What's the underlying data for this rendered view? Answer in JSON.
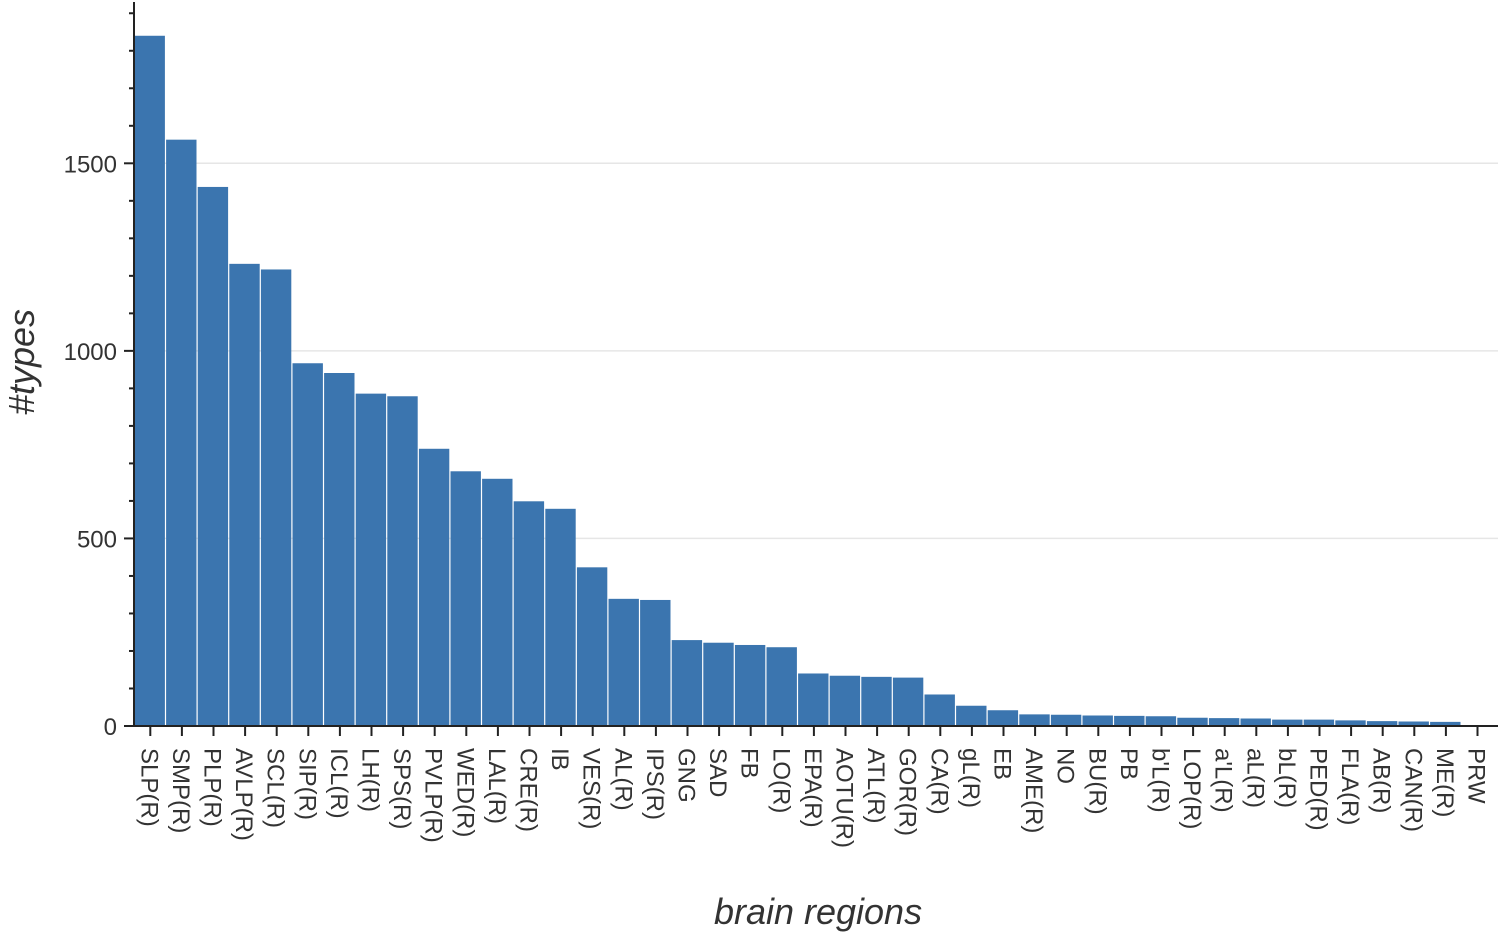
{
  "chart_data": {
    "type": "bar",
    "xlabel": "brain regions",
    "ylabel": "#types",
    "ylim": [
      0,
      1930
    ],
    "yticks": [
      0,
      500,
      1000,
      1500
    ],
    "grid": "horizontal",
    "bar_color": "#3b75af",
    "categories": [
      "SLP(R)",
      "SMP(R)",
      "PLP(R)",
      "AVLP(R)",
      "SCL(R)",
      "SIP(R)",
      "ICL(R)",
      "LH(R)",
      "SPS(R)",
      "PVLP(R)",
      "WED(R)",
      "LAL(R)",
      "CRE(R)",
      "IB",
      "VES(R)",
      "AL(R)",
      "IPS(R)",
      "GNG",
      "SAD",
      "FB",
      "LO(R)",
      "EPA(R)",
      "AOTU(R)",
      "ATL(R)",
      "GOR(R)",
      "CA(R)",
      "gL(R)",
      "EB",
      "AME(R)",
      "NO",
      "BU(R)",
      "PB",
      "b'L(R)",
      "LOP(R)",
      "a'L(R)",
      "aL(R)",
      "bL(R)",
      "PED(R)",
      "FLA(R)",
      "AB(R)",
      "CAN(R)",
      "ME(R)",
      "PRW"
    ],
    "values": [
      1840,
      1563,
      1437,
      1232,
      1217,
      967,
      941,
      886,
      879,
      739,
      679,
      659,
      599,
      579,
      423,
      339,
      336,
      229,
      222,
      216,
      210,
      140,
      134,
      131,
      129,
      84,
      54,
      42,
      31,
      30,
      28,
      27,
      26,
      22,
      21,
      20,
      17,
      17,
      15,
      13,
      12,
      11,
      0
    ]
  }
}
